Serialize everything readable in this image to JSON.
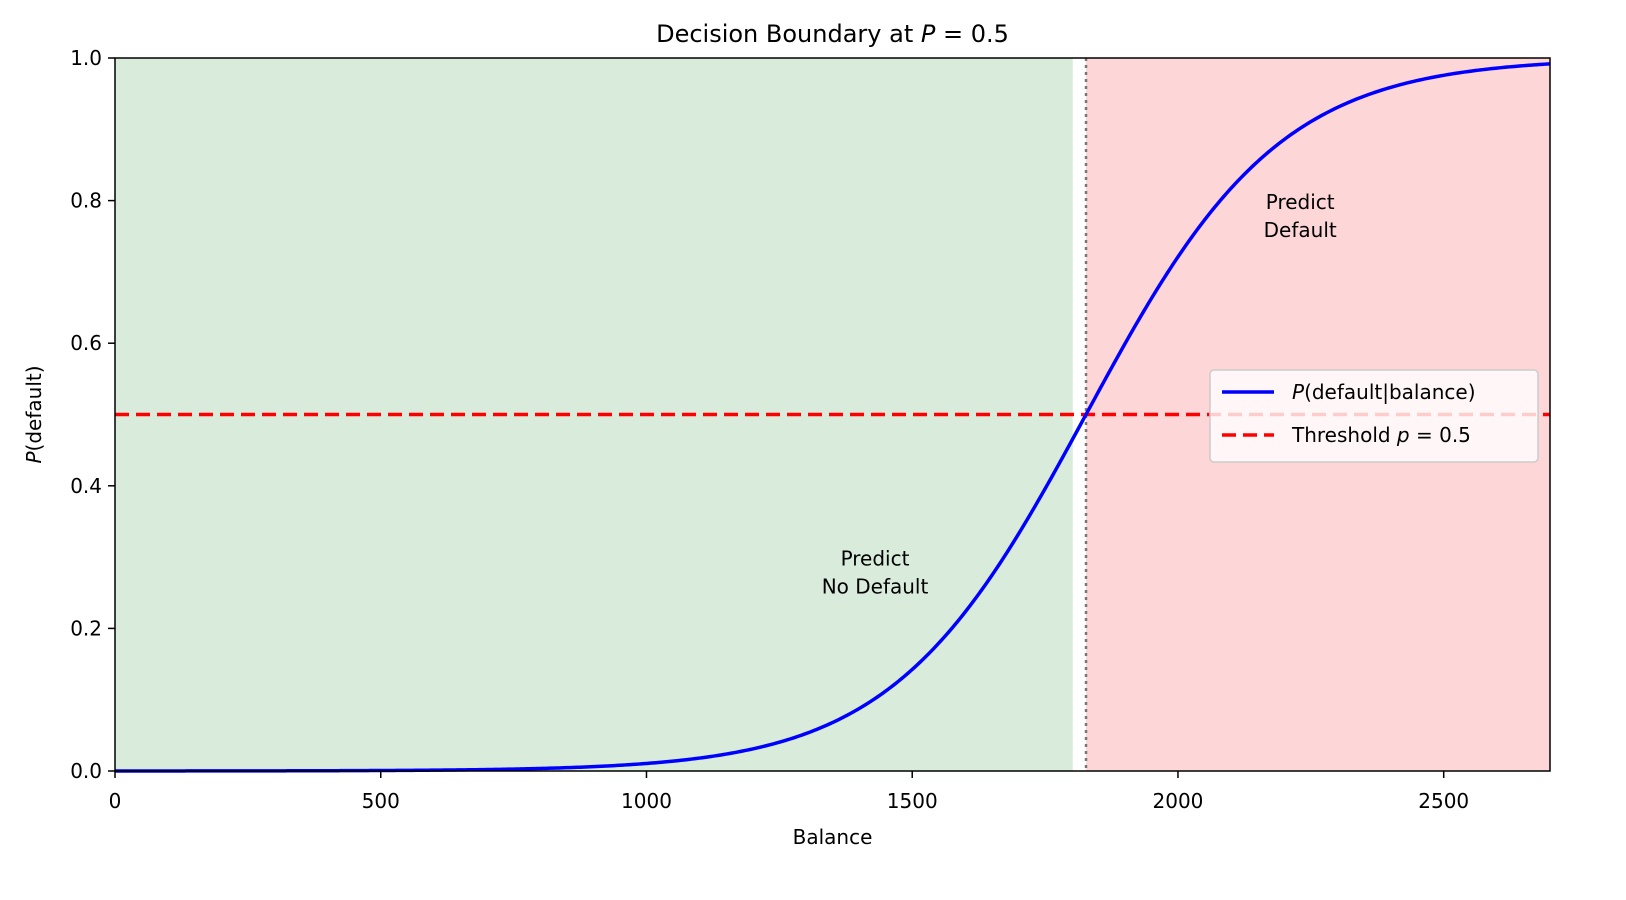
{
  "chart_data": {
    "type": "line",
    "title": "Decision Boundary at P = 0.5",
    "title_prefix": "Decision Boundary at ",
    "title_var": "P",
    "title_suffix": " = 0.5",
    "xlabel": "Balance",
    "ylabel_var": "P",
    "ylabel_rest": "(default)",
    "xlim": [
      0,
      2700
    ],
    "ylim": [
      0,
      1
    ],
    "x_ticks": [
      0,
      500,
      1000,
      1500,
      2000,
      2500
    ],
    "y_ticks": [
      0.0,
      0.2,
      0.4,
      0.6,
      0.8,
      1.0
    ],
    "x_tick_labels": [
      "0",
      "500",
      "1000",
      "1500",
      "2000",
      "2500"
    ],
    "y_tick_labels": [
      "0.0",
      "0.2",
      "0.4",
      "0.6",
      "0.8",
      "1.0"
    ],
    "grid": false,
    "series": [
      {
        "name": "P(default|balance)",
        "style": "solid",
        "color": "#0000ff",
        "x": [
          0,
          500,
          800,
          1000,
          1100,
          1200,
          1300,
          1400,
          1500,
          1600,
          1700,
          1750,
          1800,
          1827,
          1850,
          1900,
          2000,
          2100,
          2200,
          2300,
          2400,
          2500,
          2600,
          2700
        ],
        "y": [
          0.0,
          0.0002,
          0.0013,
          0.0052,
          0.0104,
          0.0207,
          0.0404,
          0.0773,
          0.1425,
          0.2474,
          0.3925,
          0.4713,
          0.5504,
          0.5,
          0.5534,
          0.6434,
          0.7805,
          0.8763,
          0.9343,
          0.9663,
          0.983,
          0.9915,
          0.9958,
          0.9979
        ]
      }
    ],
    "threshold": {
      "name": "Threshold p = 0.5",
      "y": 0.5,
      "style": "dashed",
      "color": "#ff0000"
    },
    "boundary_x": 1827,
    "regions": [
      {
        "name": "no-default",
        "x_range": [
          0,
          1802
        ],
        "color": "#d9ecdb"
      },
      {
        "name": "default",
        "x_range": [
          1827,
          2700
        ],
        "color": "#fdd6d8"
      }
    ],
    "annotations": [
      {
        "lines": [
          "Predict",
          "No Default"
        ],
        "x": 1430,
        "y": 0.28
      },
      {
        "lines": [
          "Predict",
          "Default"
        ],
        "x": 2230,
        "y": 0.78
      }
    ],
    "legend": {
      "placement": "center-right",
      "entries": [
        {
          "var": "P",
          "text": "(default|balance)",
          "style": "solid",
          "color": "#0000ff"
        },
        {
          "prefix": "Threshold ",
          "var": "p",
          "text": " = 0.5",
          "style": "dashed",
          "color": "#ff0000"
        }
      ]
    }
  }
}
